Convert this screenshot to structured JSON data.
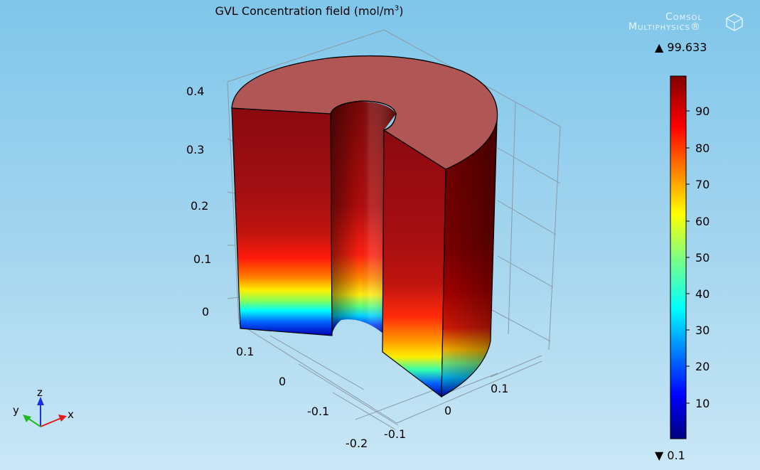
{
  "title": {
    "main": "GVL Concentration field (mol/m",
    "superscript": "3",
    "suffix": ")"
  },
  "logo": {
    "line1": "Comsol",
    "line2": "Multiphysics",
    "registered": "®"
  },
  "colorbar": {
    "max_label": "▲ 99.633",
    "min_label": "▼ 0.1",
    "max": 99.633,
    "min": 0.1,
    "colormap": "rainbow",
    "ticks": [
      "90",
      "80",
      "70",
      "60",
      "50",
      "40",
      "30",
      "20",
      "10"
    ]
  },
  "axes": {
    "z_ticks": [
      "0.4",
      "0.3",
      "0.2",
      "0.1",
      "0"
    ],
    "x_ticks": [
      "0.1",
      "0",
      "-0.1",
      "-0.2"
    ],
    "y_ticks": [
      "-0.1",
      "0",
      "0.1"
    ]
  },
  "triad": {
    "z": "z",
    "y": "y",
    "x": "x"
  },
  "colors": {
    "top_face": "#b05654",
    "dark_red": "#7e0000",
    "x_axis": "#e11b1b",
    "y_axis": "#21b921",
    "z_axis": "#1b2fe8"
  }
}
